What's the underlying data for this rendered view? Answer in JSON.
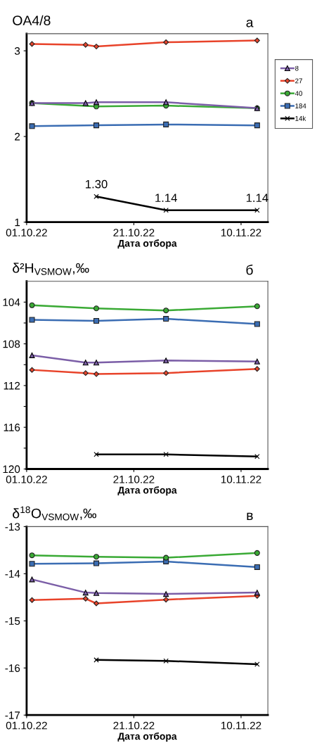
{
  "chart_data": [
    {
      "type": "line",
      "title": "OA4/8",
      "annotations": [
        "а"
      ],
      "xlabel": "Дата отбора",
      "xlim": [
        "2022-10-01",
        "2022-11-15"
      ],
      "xticks": [
        {
          "value": "2022-10-01",
          "label": "01.10.22"
        },
        {
          "value": "2022-10-21",
          "label": "21.10.22"
        },
        {
          "value": "2022-11-10",
          "label": "10.11.22"
        }
      ],
      "ylim": [
        1,
        3.2
      ],
      "yticks": [
        1,
        2,
        3
      ],
      "grid": false,
      "legend": "right",
      "series": [
        {
          "name": "8",
          "color": "#7b5ea7",
          "marker": "triangle",
          "x": [
            "2022-10-02",
            "2022-10-12",
            "2022-10-14",
            "2022-10-27",
            "2022-11-13"
          ],
          "values": [
            2.39,
            2.39,
            2.4,
            2.4,
            2.33
          ]
        },
        {
          "name": "27",
          "color": "#e8432a",
          "marker": "diamond",
          "x": [
            "2022-10-02",
            "2022-10-12",
            "2022-10-14",
            "2022-10-27",
            "2022-11-13"
          ],
          "values": [
            3.08,
            3.07,
            3.05,
            3.1,
            3.12
          ]
        },
        {
          "name": "40",
          "color": "#3aaa35",
          "marker": "circle",
          "x": [
            "2022-10-02",
            "2022-10-14",
            "2022-10-27",
            "2022-11-13"
          ],
          "values": [
            2.39,
            2.35,
            2.36,
            2.33
          ]
        },
        {
          "name": "184",
          "color": "#3b6db3",
          "marker": "square",
          "x": [
            "2022-10-02",
            "2022-10-14",
            "2022-10-27",
            "2022-11-13"
          ],
          "values": [
            2.12,
            2.13,
            2.14,
            2.13
          ]
        },
        {
          "name": "14k",
          "color": "#000000",
          "marker": "cross",
          "x": [
            "2022-10-14",
            "2022-10-27",
            "2022-11-13"
          ],
          "values": [
            1.3,
            1.14,
            1.14
          ],
          "value_labels": [
            "1.30",
            "1.14",
            "1.14"
          ]
        }
      ]
    },
    {
      "type": "line",
      "title": "δ²H$_{VSMOW}$,‰",
      "annotations": [
        "б"
      ],
      "xlabel": "Дата отбора",
      "xlim": [
        "2022-10-01",
        "2022-11-15"
      ],
      "xticks": [
        {
          "value": "2022-10-01",
          "label": "01.10.22"
        },
        {
          "value": "2022-10-21",
          "label": "21.10.22"
        },
        {
          "value": "2022-11-10",
          "label": "10.11.22"
        }
      ],
      "ylim": [
        120,
        102
      ],
      "yticks": [
        104,
        {
          "value": 106,
          "label": null
        },
        108,
        {
          "value": 110,
          "label": null
        },
        112,
        {
          "value": 114,
          "label": null
        },
        116,
        {
          "value": 118,
          "label": null
        },
        120
      ],
      "grid": false,
      "legend": false,
      "series": [
        {
          "color": "#7b5ea7",
          "marker": "triangle",
          "x": [
            "2022-10-02",
            "2022-10-12",
            "2022-10-14",
            "2022-10-27",
            "2022-11-13"
          ],
          "values": [
            109.1,
            109.8,
            109.8,
            109.6,
            109.7
          ]
        },
        {
          "color": "#e8432a",
          "marker": "diamond",
          "x": [
            "2022-10-02",
            "2022-10-12",
            "2022-10-14",
            "2022-10-27",
            "2022-11-13"
          ],
          "values": [
            110.5,
            110.8,
            110.9,
            110.8,
            110.4
          ]
        },
        {
          "color": "#3aaa35",
          "marker": "circle",
          "x": [
            "2022-10-02",
            "2022-10-14",
            "2022-10-27",
            "2022-11-13"
          ],
          "values": [
            104.3,
            104.6,
            104.8,
            104.4
          ]
        },
        {
          "color": "#3b6db3",
          "marker": "square",
          "x": [
            "2022-10-02",
            "2022-10-14",
            "2022-10-27",
            "2022-11-13"
          ],
          "values": [
            105.7,
            105.8,
            105.6,
            106.1
          ]
        },
        {
          "color": "#000000",
          "marker": "cross",
          "x": [
            "2022-10-14",
            "2022-10-27",
            "2022-11-13"
          ],
          "values": [
            118.6,
            118.6,
            118.8
          ]
        }
      ]
    },
    {
      "type": "line",
      "title": "δ$^{18}$O$_{VSMOW}$,‰",
      "annotations": [
        "в"
      ],
      "xlabel": "Дата отбора",
      "xlim": [
        "2022-10-01",
        "2022-11-15"
      ],
      "xticks": [
        {
          "value": "2022-10-01",
          "label": "01.10.22"
        },
        {
          "value": "2022-10-21",
          "label": "21.10.22"
        },
        {
          "value": "2022-11-10",
          "label": "10.11.22"
        }
      ],
      "ylim": [
        -17,
        -13
      ],
      "yticks": [
        -17,
        -16,
        -15,
        -14,
        -13
      ],
      "grid": false,
      "legend": false,
      "series": [
        {
          "color": "#7b5ea7",
          "marker": "triangle",
          "x": [
            "2022-10-02",
            "2022-10-12",
            "2022-10-14",
            "2022-10-27",
            "2022-11-13"
          ],
          "values": [
            -14.12,
            -14.4,
            -14.41,
            -14.43,
            -14.4
          ]
        },
        {
          "color": "#e8432a",
          "marker": "diamond",
          "x": [
            "2022-10-02",
            "2022-10-12",
            "2022-10-14",
            "2022-10-27",
            "2022-11-13"
          ],
          "values": [
            -14.56,
            -14.53,
            -14.63,
            -14.55,
            -14.47
          ]
        },
        {
          "color": "#3aaa35",
          "marker": "circle",
          "x": [
            "2022-10-02",
            "2022-10-14",
            "2022-10-27",
            "2022-11-13"
          ],
          "values": [
            -13.61,
            -13.64,
            -13.66,
            -13.56
          ]
        },
        {
          "color": "#3b6db3",
          "marker": "square",
          "x": [
            "2022-10-02",
            "2022-10-14",
            "2022-10-27",
            "2022-11-13"
          ],
          "values": [
            -13.79,
            -13.78,
            -13.74,
            -13.86
          ]
        },
        {
          "color": "#000000",
          "marker": "cross",
          "x": [
            "2022-10-14",
            "2022-10-27",
            "2022-11-13"
          ],
          "values": [
            -15.83,
            -15.85,
            -15.92
          ]
        }
      ]
    }
  ]
}
